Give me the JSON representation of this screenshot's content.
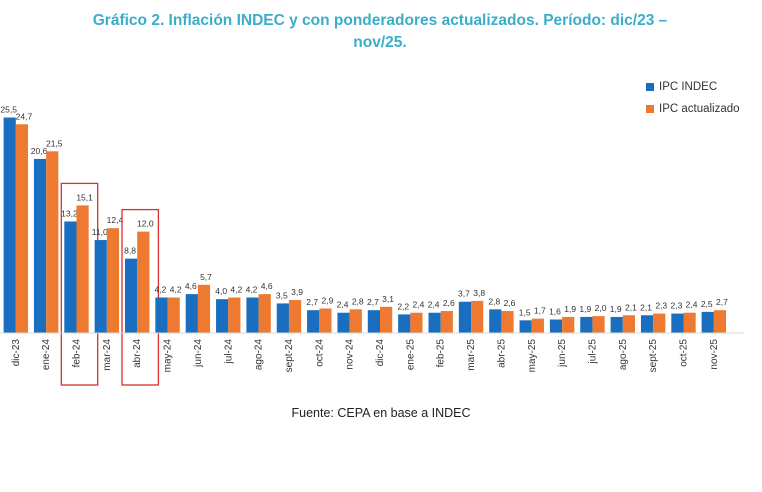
{
  "title_line1": "Gráfico 2. Inflación INDEC y con ponderadores actualizados. Período: dic/23 –",
  "title_line2": "nov/25.",
  "source": "Fuente: CEPA en base a INDEC",
  "colors": {
    "indec": "#1a6ec0",
    "actualizado": "#ee7a32",
    "highlight": "#d9312f",
    "title": "#3aaec9"
  },
  "chart_data": {
    "type": "bar",
    "title": "Gráfico 2. Inflación INDEC y con ponderadores actualizados. Período: dic/23 – nov/25.",
    "categories": [
      "dic-23",
      "ene-24",
      "feb-24",
      "mar-24",
      "abr-24",
      "may-24",
      "jun-24",
      "jul-24",
      "ago-24",
      "sept-24",
      "oct-24",
      "nov-24",
      "dic-24",
      "ene-25",
      "feb-25",
      "mar-25",
      "abr-25",
      "may-25",
      "jun-25",
      "jul-25",
      "ago-25",
      "sept-25",
      "oct-25",
      "nov-25"
    ],
    "series": [
      {
        "name": "IPC INDEC",
        "color": "#1a6ec0",
        "values": [
          25.5,
          20.6,
          13.2,
          11.0,
          8.8,
          4.2,
          4.6,
          4.0,
          4.2,
          3.5,
          2.7,
          2.4,
          2.7,
          2.2,
          2.4,
          3.7,
          2.8,
          1.5,
          1.6,
          1.9,
          1.9,
          2.1,
          2.3,
          2.5
        ],
        "labels": [
          "25,5",
          "20,6",
          "13,2",
          "11,0",
          "8,8",
          "4,2",
          "4,6",
          "4,0",
          "4,2",
          "3,5",
          "2,7",
          "2,4",
          "2,7",
          "2,2",
          "2,4",
          "3,7",
          "2,8",
          "1,5",
          "1,6",
          "1,9",
          "1,9",
          "2,1",
          "2,3",
          "2,5"
        ]
      },
      {
        "name": "IPC actualizado",
        "color": "#ee7a32",
        "values": [
          24.7,
          21.5,
          15.1,
          12.4,
          12.0,
          4.2,
          5.7,
          4.2,
          4.6,
          3.9,
          2.9,
          2.8,
          3.1,
          2.4,
          2.6,
          3.8,
          2.6,
          1.7,
          1.9,
          2.0,
          2.1,
          2.3,
          2.4,
          2.7
        ],
        "labels": [
          "24,7",
          "21,5",
          "15,1",
          "12,4",
          "12,0",
          "4,2",
          "5,7",
          "4,2",
          "4,6",
          "3,9",
          "2,9",
          "2,8",
          "3,1",
          "2,4",
          "2,6",
          "3,8",
          "2,6",
          "1,7",
          "1,9",
          "2,0",
          "2,1",
          "2,3",
          "2,4",
          "2,7"
        ]
      }
    ],
    "highlighted_categories": [
      "feb-24",
      "abr-24"
    ],
    "legend_position": "top-right",
    "grid": false,
    "ylim": [
      0,
      27
    ]
  }
}
